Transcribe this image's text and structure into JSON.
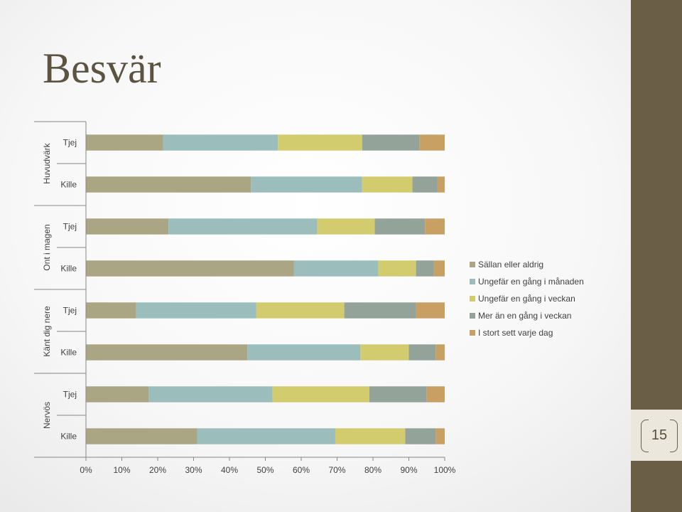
{
  "slide": {
    "title": "Besvär",
    "page_number": "15"
  },
  "colors": {
    "side_band": "#6b5e46",
    "badge": "#ebe7dc",
    "title": "#5c5340"
  },
  "chart_data": {
    "type": "bar",
    "orientation": "horizontal",
    "stacked": "percent",
    "groups": [
      "Huvudvärk",
      "Ont i magen",
      "Känt dig nere",
      "Nervös"
    ],
    "categories": [
      {
        "group": "Huvudvärk",
        "label": "Tjej"
      },
      {
        "group": "Huvudvärk",
        "label": "Kille"
      },
      {
        "group": "Ont i magen",
        "label": "Tjej"
      },
      {
        "group": "Ont i magen",
        "label": "Kille"
      },
      {
        "group": "Känt dig nere",
        "label": "Tjej"
      },
      {
        "group": "Känt dig nere",
        "label": "Kille"
      },
      {
        "group": "Nervös",
        "label": "Tjej"
      },
      {
        "group": "Nervös",
        "label": "Kille"
      }
    ],
    "series": [
      {
        "name": "Sällan eller aldrig",
        "color": "#aaa582",
        "values": [
          21.5,
          46,
          23,
          58,
          14,
          45,
          17.5,
          31
        ]
      },
      {
        "name": "Ungefär en gång i månaden",
        "color": "#9bbebd",
        "values": [
          32,
          31,
          41.5,
          23.5,
          33.5,
          31.5,
          34.5,
          38.5
        ]
      },
      {
        "name": "Ungefär en gång i veckan",
        "color": "#d2cc6e",
        "values": [
          23.5,
          14,
          16,
          10.5,
          24.5,
          13.5,
          27,
          19.5
        ]
      },
      {
        "name": "Mer än en gång i veckan",
        "color": "#93a39a",
        "values": [
          16,
          7,
          14,
          5,
          20,
          7.5,
          16,
          8.5
        ]
      },
      {
        "name": "I stort sett varje dag",
        "color": "#c9a064",
        "values": [
          7,
          2,
          5.5,
          3,
          8,
          2.5,
          5,
          2.5
        ]
      }
    ],
    "xlim": [
      0,
      100
    ],
    "x_ticks": [
      "0%",
      "10%",
      "20%",
      "30%",
      "40%",
      "50%",
      "60%",
      "70%",
      "80%",
      "90%",
      "100%"
    ],
    "legend_position": "right",
    "grid": false
  }
}
